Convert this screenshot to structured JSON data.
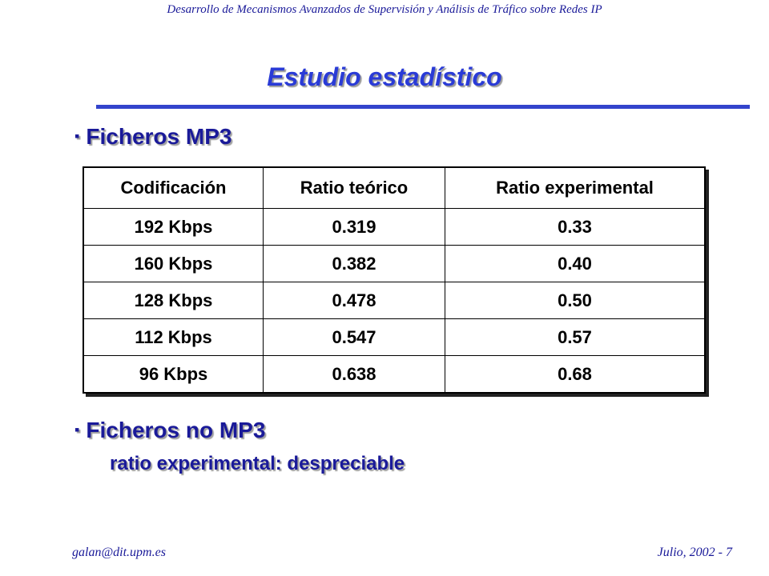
{
  "header": {
    "course_title": "Desarrollo de Mecanismos Avanzados de Supervisión y Análisis de Tráfico sobre Redes IP"
  },
  "slide": {
    "title": "Estudio estadístico",
    "bullet_mark": "▪",
    "bullet_1": "Ficheros MP3",
    "bullet_2": "Ficheros no MP3",
    "bullet_2_detail": "ratio experimental: despreciable"
  },
  "table": {
    "headers": [
      "Codificación",
      "Ratio teórico",
      "Ratio experimental"
    ],
    "rows": [
      [
        "192 Kbps",
        "0.319",
        "0.33"
      ],
      [
        "160 Kbps",
        "0.382",
        "0.40"
      ],
      [
        "128 Kbps",
        "0.478",
        "0.50"
      ],
      [
        "112 Kbps",
        "0.547",
        "0.57"
      ],
      [
        "96 Kbps",
        "0.638",
        "0.68"
      ]
    ]
  },
  "footer": {
    "email": "galan@dit.upm.es",
    "date_page": "Julio, 2002 - 7"
  },
  "colors": {
    "text_blue": "#1a1a99",
    "title_blue": "#2a3bd6",
    "rule_blue": "#3344cc"
  }
}
